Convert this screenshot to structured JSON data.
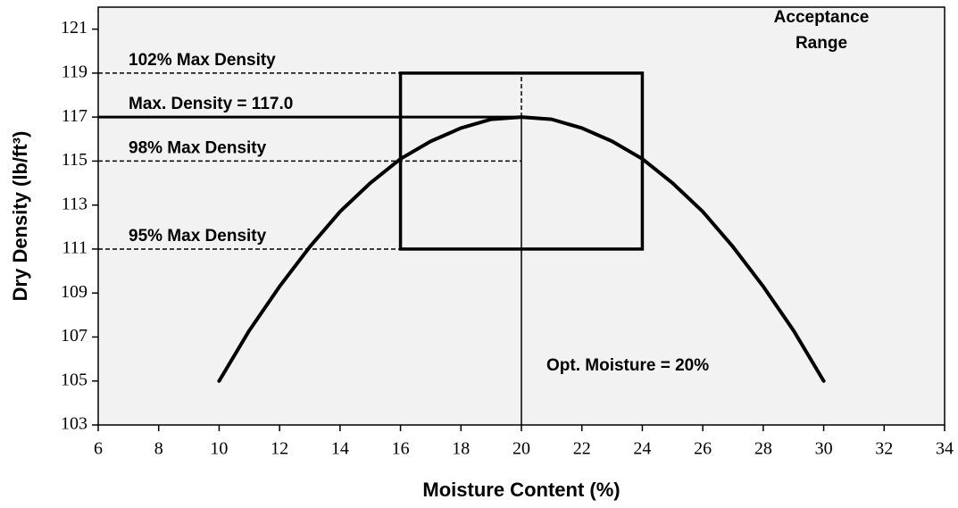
{
  "chart_data": {
    "type": "line",
    "x_label": "Moisture Content (%)",
    "y_label": "Dry Density (lb/ft³)",
    "x": [
      10,
      11,
      12,
      13,
      14,
      15,
      16,
      17,
      18,
      19,
      20,
      21,
      22,
      23,
      24,
      25,
      26,
      27,
      28,
      29,
      30
    ],
    "values": [
      105,
      107.3,
      109.3,
      111.1,
      112.7,
      114,
      115.1,
      115.9,
      116.5,
      116.9,
      117,
      116.9,
      116.5,
      115.9,
      115.1,
      114,
      112.7,
      111.1,
      109.3,
      107.3,
      105
    ],
    "color": "#000000",
    "xlim": [
      6,
      34
    ],
    "xticks": [
      6,
      8,
      10,
      12,
      14,
      16,
      18,
      20,
      22,
      24,
      26,
      28,
      30,
      32,
      34
    ],
    "ylim": [
      103,
      122
    ],
    "yticks": [
      103,
      105,
      107,
      109,
      111,
      113,
      115,
      117,
      119,
      121
    ],
    "reference_lines": [
      {
        "y": 119,
        "label": "102% Max Density",
        "style": "dashed"
      },
      {
        "y": 117,
        "label": "Max. Density = 117.0",
        "style": "solid"
      },
      {
        "y": 115,
        "label": "98% Max Density",
        "style": "dashed"
      },
      {
        "y": 111,
        "label": "95% Max Density",
        "style": "dashed"
      }
    ],
    "optimum": {
      "x": 20,
      "y": 117,
      "label": "Opt. Moisture = 20%"
    },
    "acceptance_box": {
      "x": [
        16,
        24
      ],
      "y": [
        111,
        119
      ],
      "label": [
        "Acceptance",
        "Range"
      ]
    }
  }
}
